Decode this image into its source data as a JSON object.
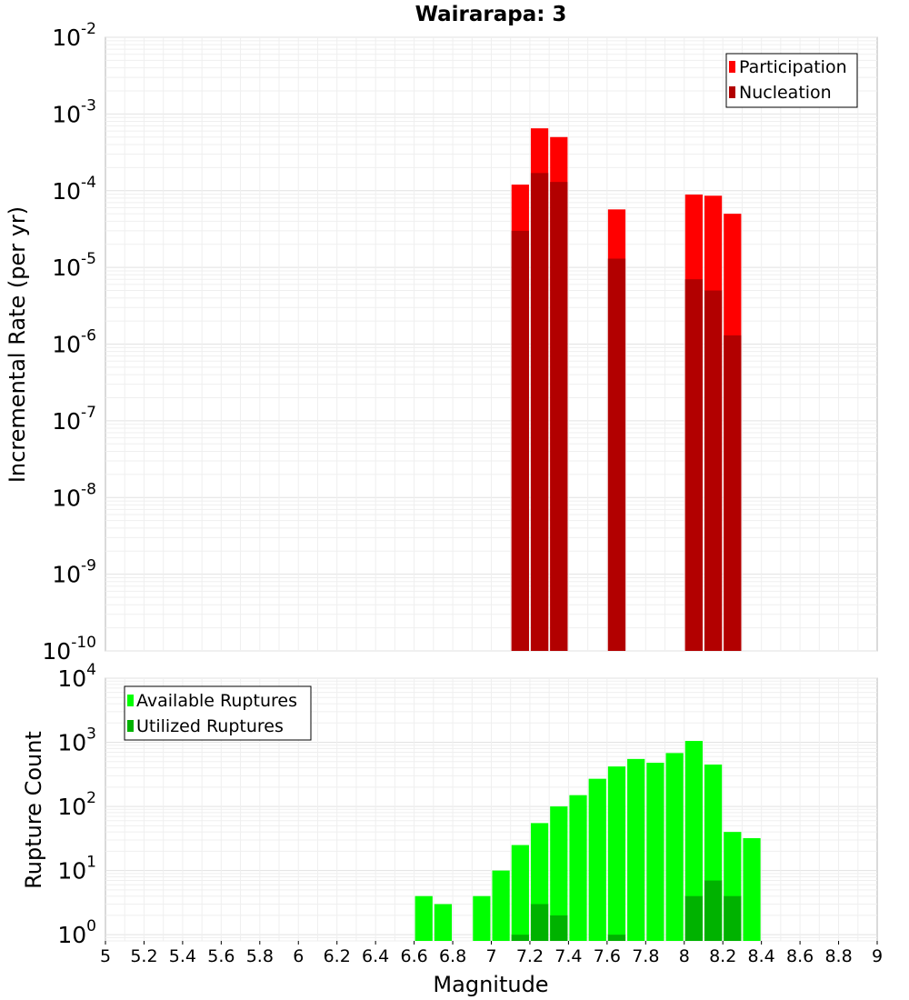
{
  "chart_data": [
    {
      "type": "bar",
      "title": "Wairarapa: 3",
      "xlabel": "",
      "ylabel": "Incremental Rate (per yr)",
      "yscale": "log",
      "ylim": [
        1e-10,
        0.01
      ],
      "xlim": [
        5,
        9
      ],
      "bin_width": 0.1,
      "legend": "top-right",
      "grid": true,
      "series": [
        {
          "name": "Participation",
          "color": "#ff0000",
          "x": [
            7.15,
            7.25,
            7.35,
            7.65,
            8.05,
            8.15,
            8.25
          ],
          "values": [
            0.00012,
            0.00065,
            0.0005,
            5.7e-05,
            8.9e-05,
            8.6e-05,
            5e-05
          ]
        },
        {
          "name": "Nucleation",
          "color": "#b20000",
          "x": [
            7.15,
            7.25,
            7.35,
            7.65,
            8.05,
            8.15,
            8.25
          ],
          "values": [
            3e-05,
            0.00017,
            0.00013,
            1.3e-05,
            7e-06,
            5e-06,
            1.3e-06
          ]
        }
      ]
    },
    {
      "type": "bar",
      "title": "",
      "xlabel": "Magnitude",
      "ylabel": "Rupture Count",
      "yscale": "log",
      "ylim": [
        0.8,
        10000
      ],
      "xlim": [
        5,
        9
      ],
      "bin_width": 0.1,
      "legend": "top-left",
      "grid": true,
      "x_ticks": [
        "5",
        "5.2",
        "5.4",
        "5.6",
        "5.8",
        "6",
        "6.2",
        "6.4",
        "6.6",
        "6.8",
        "7",
        "7.2",
        "7.4",
        "7.6",
        "7.8",
        "8",
        "8.2",
        "8.4",
        "8.6",
        "8.8",
        "9"
      ],
      "series": [
        {
          "name": "Available Ruptures",
          "color": "#00ff00",
          "x": [
            6.65,
            6.75,
            6.95,
            7.05,
            7.15,
            7.25,
            7.35,
            7.45,
            7.55,
            7.65,
            7.75,
            7.85,
            7.95,
            8.05,
            8.15,
            8.25,
            8.35
          ],
          "values": [
            4,
            3,
            4,
            10,
            25,
            55,
            100,
            150,
            270,
            420,
            550,
            480,
            680,
            1050,
            450,
            40,
            32
          ]
        },
        {
          "name": "Utilized Ruptures",
          "color": "#00b200",
          "x": [
            7.15,
            7.25,
            7.35,
            7.65,
            8.05,
            8.15,
            8.25
          ],
          "values": [
            1,
            3,
            2,
            1,
            4,
            7,
            4
          ]
        }
      ]
    }
  ]
}
